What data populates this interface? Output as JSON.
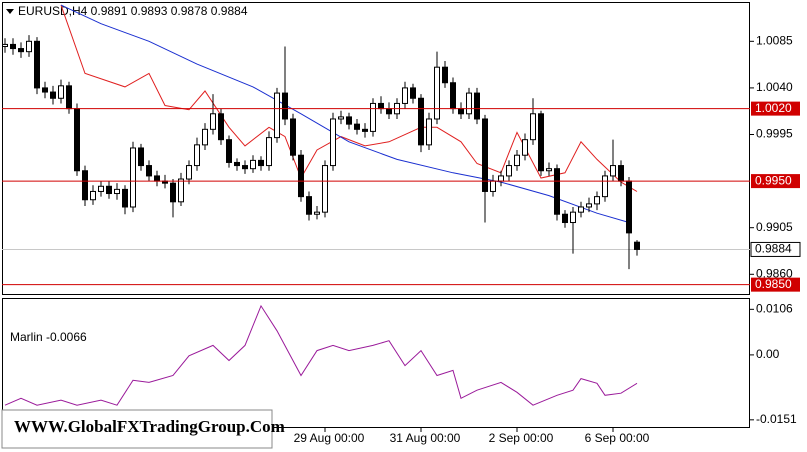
{
  "chart_data": [
    {
      "type": "candlestick",
      "title": "EURUSD,H4  0.9891 0.9893 0.9878 0.9884",
      "categories": [
        null,
        null,
        null,
        null,
        null,
        null,
        null,
        null,
        null,
        null,
        null,
        null,
        null,
        null,
        null,
        null,
        null,
        null,
        null,
        null,
        null,
        null,
        null,
        null,
        null,
        null,
        null,
        null,
        null,
        null,
        null,
        null,
        null,
        null,
        null,
        null,
        null,
        null,
        null,
        null,
        "29 Aug 00:00",
        null,
        null,
        null,
        null,
        null,
        null,
        null,
        null,
        null,
        null,
        null,
        "31 Aug 00:00",
        null,
        null,
        null,
        null,
        null,
        null,
        null,
        null,
        null,
        null,
        null,
        "2 Sep 00:00",
        null,
        null,
        null,
        null,
        null,
        null,
        null,
        null,
        null,
        null,
        null,
        "6 Sep 00:00",
        null,
        null,
        null
      ],
      "open": [
        1.008,
        1.0082,
        1.0078,
        1.0075,
        1.0085,
        1.004,
        1.0036,
        1.003,
        1.0042,
        1.002,
        0.996,
        0.9932,
        0.994,
        0.9945,
        0.9938,
        0.9942,
        0.9925,
        0.9982,
        0.9965,
        0.9955,
        0.995,
        0.9948,
        0.993,
        0.9952,
        0.9965,
        0.9985,
        1.0,
        1.0015,
        0.999,
        0.9968,
        0.9965,
        0.9962,
        0.997,
        0.9965,
        0.9992,
        1.0035,
        1.001,
        0.9975,
        0.9935,
        0.9918,
        0.992,
        0.9965,
        1.001,
        1.0012,
        1.0005,
        1.0,
        0.9998,
        1.0025,
        1.002,
        1.0015,
        1.0025,
        1.004,
        1.003,
        0.9985,
        1.001,
        1.006,
        1.0045,
        1.002,
        1.0015,
        1.0035,
        1.001,
        0.994,
        0.995,
        0.9955,
        0.9965,
        0.9975,
        0.999,
        1.0015,
        0.996,
        0.9962,
        0.9918,
        0.991,
        0.992,
        0.9925,
        0.9928,
        0.9935,
        0.9955,
        0.9965,
        0.995,
        0.9891
      ],
      "high": [
        1.0088,
        1.0088,
        1.0084,
        1.0091,
        1.0089,
        1.0046,
        1.0042,
        1.0048,
        1.0046,
        1.0025,
        0.9965,
        0.9946,
        0.995,
        0.995,
        0.9948,
        0.9946,
        0.9988,
        0.9986,
        0.997,
        0.996,
        0.9956,
        0.9952,
        0.9958,
        0.997,
        0.9992,
        1.0006,
        1.0034,
        1.002,
        0.9994,
        0.9972,
        0.997,
        0.9975,
        0.9974,
        0.9998,
        1.004,
        1.008,
        1.0015,
        0.998,
        0.994,
        0.9926,
        0.997,
        1.0016,
        1.0018,
        1.0016,
        1.001,
        1.0006,
        1.003,
        1.0032,
        1.0026,
        1.003,
        1.0046,
        1.0044,
        1.0034,
        1.0016,
        1.0075,
        1.0066,
        1.005,
        1.0026,
        1.004,
        1.004,
        1.0014,
        0.9956,
        0.996,
        0.997,
        0.998,
        0.9996,
        1.003,
        1.0018,
        0.9968,
        0.9966,
        0.9922,
        0.9925,
        0.993,
        0.9934,
        0.994,
        0.996,
        0.999,
        0.997,
        0.9954,
        0.9893
      ],
      "low": [
        1.0074,
        1.0072,
        1.0069,
        1.007,
        1.0034,
        1.003,
        1.0024,
        1.0025,
        1.0015,
        0.9955,
        0.9926,
        0.9927,
        0.9935,
        0.9933,
        0.9932,
        0.9918,
        0.992,
        0.996,
        0.995,
        0.9945,
        0.9943,
        0.9915,
        0.9926,
        0.9947,
        0.996,
        0.998,
        0.9995,
        0.9985,
        0.9963,
        0.996,
        0.9957,
        0.9958,
        0.996,
        0.996,
        0.9987,
        1.0004,
        0.997,
        0.993,
        0.9912,
        0.9913,
        0.9915,
        0.996,
        1.0005,
        1.0,
        0.9995,
        0.9992,
        0.9993,
        1.0015,
        1.001,
        1.001,
        1.002,
        1.0025,
        0.9978,
        0.998,
        1.0005,
        1.004,
        1.0015,
        1.001,
        1.001,
        1.0005,
        0.991,
        0.9935,
        0.9945,
        0.995,
        0.996,
        0.997,
        0.9985,
        0.9955,
        0.9955,
        0.9912,
        0.9905,
        0.988,
        0.9915,
        0.992,
        0.9922,
        0.993,
        0.995,
        0.9945,
        0.9865,
        0.9878
      ],
      "close": [
        1.0082,
        1.0078,
        1.0075,
        1.0085,
        1.004,
        1.0036,
        1.003,
        1.0042,
        1.002,
        0.996,
        0.9932,
        0.994,
        0.9945,
        0.9938,
        0.9942,
        0.9925,
        0.9982,
        0.9965,
        0.9955,
        0.995,
        0.9948,
        0.993,
        0.9952,
        0.9965,
        0.9985,
        1.0,
        1.0015,
        0.999,
        0.9968,
        0.9965,
        0.9962,
        0.997,
        0.9965,
        0.9992,
        1.0035,
        1.001,
        0.9975,
        0.9935,
        0.9918,
        0.992,
        0.9965,
        1.001,
        1.0012,
        1.0005,
        1.0,
        0.9998,
        1.0025,
        1.002,
        1.0015,
        1.0025,
        1.004,
        1.003,
        0.9985,
        1.001,
        1.006,
        1.0045,
        1.002,
        1.0015,
        1.0035,
        1.001,
        0.994,
        0.995,
        0.9955,
        0.9965,
        0.9975,
        0.999,
        1.0015,
        0.996,
        0.9962,
        0.9918,
        0.991,
        0.992,
        0.9925,
        0.9928,
        0.9935,
        0.9955,
        0.9965,
        0.995,
        0.99,
        0.9884
      ],
      "up_color": "#ffffff",
      "down_color": "#000000",
      "ylim": [
        0.984,
        1.0122
      ],
      "yticks": [
        {
          "value": 0.986,
          "label": "0.9860"
        },
        0.9905,
        0.9995,
        {
          "value": 1.004,
          "label": "1.0040"
        },
        1.0085
      ],
      "levels": [
        {
          "value": 1.002,
          "label": "1.0020"
        },
        {
          "value": 0.995,
          "label": "0.9950"
        },
        {
          "value": 0.985,
          "label": "0.9850"
        }
      ],
      "level_color": "#d00000",
      "current_price": 0.9884,
      "lines": [
        {
          "color": "#e02020",
          "x": [
            7,
            10,
            15,
            18,
            20,
            23,
            25,
            28,
            30,
            33,
            35,
            37,
            39,
            42,
            45,
            48,
            52,
            54,
            57,
            59,
            62,
            64,
            67,
            70,
            72,
            74,
            77,
            79
          ],
          "values": [
            1.012,
            1.0054,
            1.0041,
            1.0054,
            1.0023,
            1.0019,
            1.0037,
            1.0002,
            0.9984,
            1.0002,
            0.9993,
            0.9953,
            0.998,
            0.9993,
            0.9984,
            0.9988,
            1.0002,
            1.0002,
            0.9988,
            0.9967,
            0.9958,
            0.9997,
            0.9953,
            0.9958,
            0.9988,
            0.9971,
            0.9949,
            0.994
          ]
        },
        {
          "color": "#1a2fd0",
          "x": [
            7,
            12,
            18,
            24,
            31,
            37,
            43,
            49,
            56,
            62,
            68,
            74,
            78
          ],
          "values": [
            1.012,
            1.0102,
            1.0085,
            1.0063,
            1.0041,
            1.0015,
            0.9988,
            0.9971,
            0.9958,
            0.9949,
            0.9936,
            0.9919,
            0.991
          ]
        }
      ]
    },
    {
      "type": "line",
      "title": "Marlin -0.0066",
      "color": "#9a1a9a",
      "x": [
        0,
        2,
        4,
        7,
        9,
        12,
        14,
        16,
        18,
        21,
        23,
        26,
        28,
        30,
        32,
        34,
        37,
        39,
        41,
        43,
        46,
        48,
        50,
        52,
        54,
        56,
        57,
        59,
        62,
        64,
        66,
        69,
        71,
        72,
        74,
        75,
        77,
        79
      ],
      "values": [
        -0.0117,
        -0.0101,
        -0.0117,
        -0.0105,
        -0.0117,
        -0.0105,
        -0.0117,
        -0.0059,
        -0.0064,
        -0.0048,
        -0.0002,
        0.0022,
        -0.0013,
        0.0022,
        0.0114,
        0.0056,
        -0.0048,
        0.001,
        0.0022,
        0.001,
        0.0022,
        0.0033,
        -0.0025,
        0.001,
        -0.0048,
        -0.0036,
        -0.0101,
        -0.0082,
        -0.0064,
        -0.0087,
        -0.0117,
        -0.0094,
        -0.0082,
        -0.0055,
        -0.0066,
        -0.0094,
        -0.0089,
        -0.0066
      ],
      "ylim": [
        -0.017,
        0.013
      ],
      "yticks": [
        -0.0151,
        {
          "value": 0,
          "label": "0.00"
        },
        0.0106
      ]
    }
  ],
  "watermark": "WWW.GlobalFXTradingGroup.Com"
}
